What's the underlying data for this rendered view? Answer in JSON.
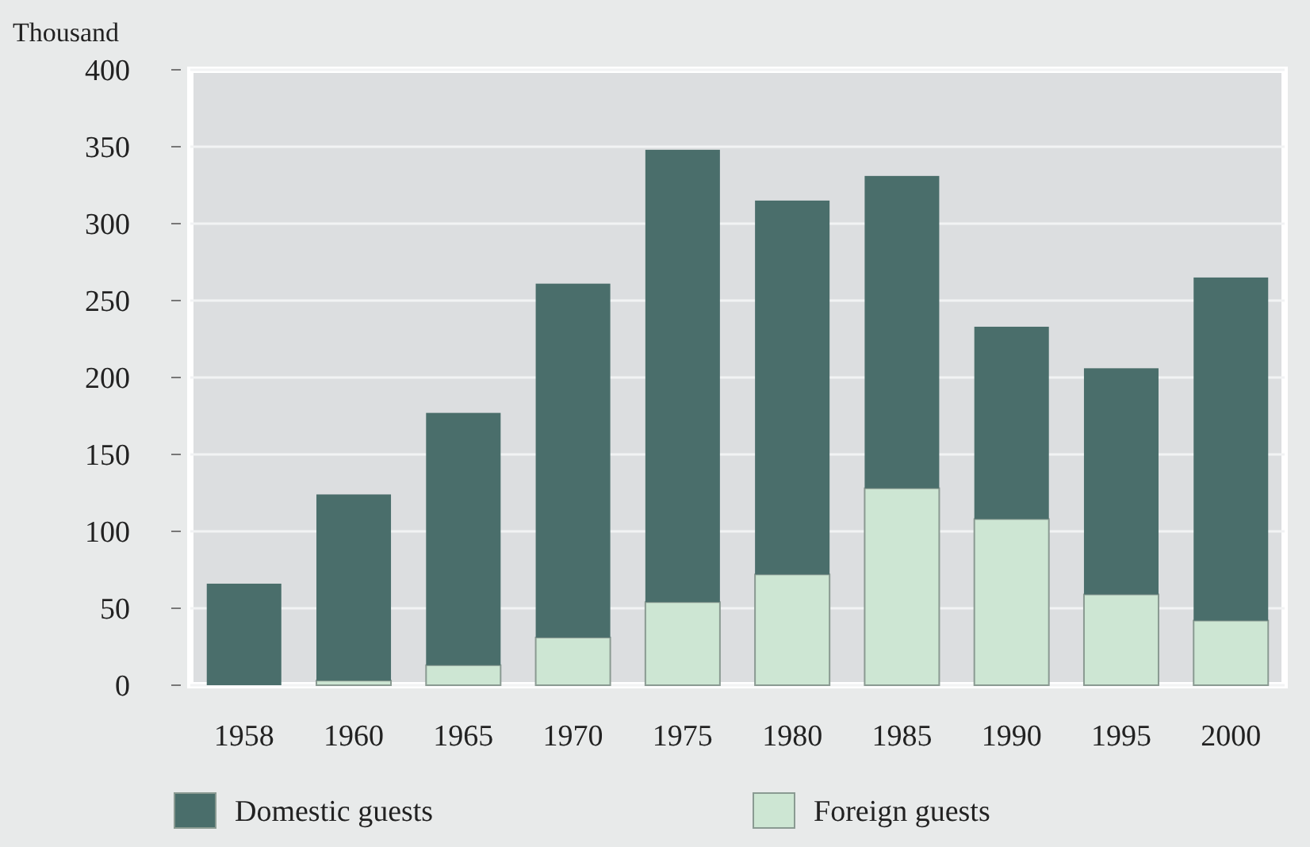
{
  "chart_data": {
    "type": "bar",
    "ylabel": "Thousand",
    "categories": [
      "1958",
      "1960",
      "1965",
      "1970",
      "1975",
      "1980",
      "1985",
      "1990",
      "1995",
      "2000"
    ],
    "stacked": true,
    "series": [
      {
        "name": "Foreign guests",
        "color": "#cde6d3",
        "values": [
          0,
          3,
          13,
          31,
          54,
          72,
          128,
          108,
          59,
          42
        ]
      },
      {
        "name": "Domestic guests",
        "color": "#4a6e6b",
        "values": [
          66,
          121,
          164,
          230,
          294,
          243,
          203,
          125,
          147,
          223
        ]
      }
    ],
    "ylim": [
      0,
      400
    ],
    "yticks": [
      0,
      50,
      100,
      150,
      200,
      250,
      300,
      350,
      400
    ],
    "grid": "y",
    "legend": "bottom"
  }
}
